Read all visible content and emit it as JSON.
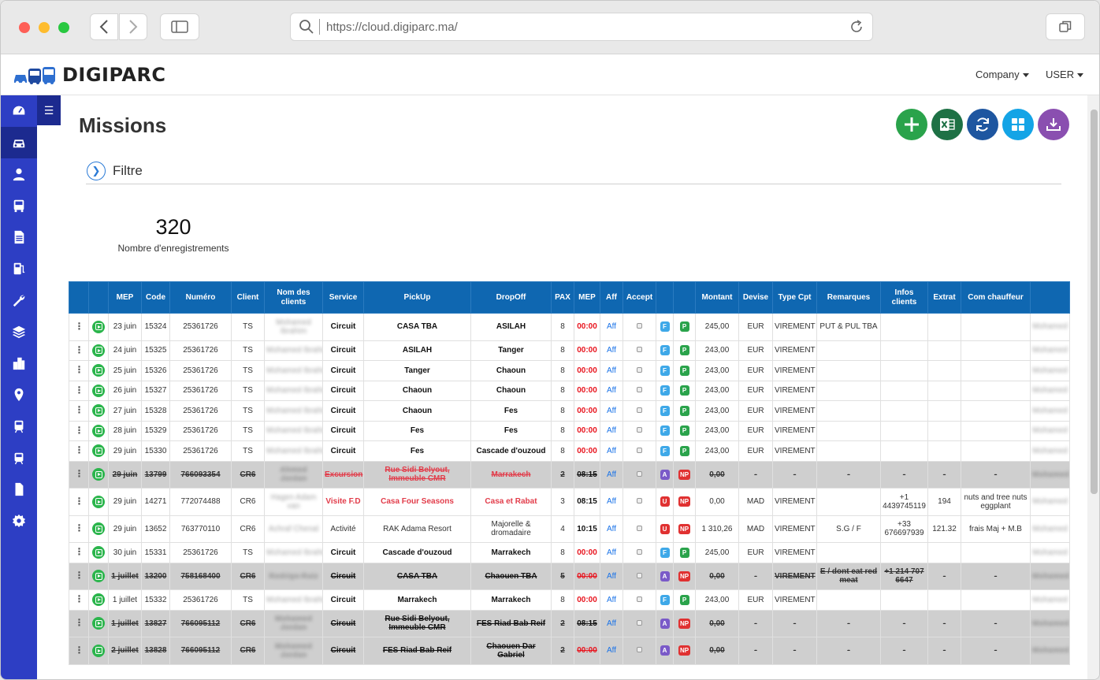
{
  "browser": {
    "url": "https://cloud.digiparc.ma/"
  },
  "header": {
    "logo": "DIGIPARC",
    "company_menu": "Company",
    "user_menu": "USER"
  },
  "nav": [
    "dashboard-icon",
    "car-icon",
    "user-icon",
    "bus-icon",
    "document-icon",
    "fuel-icon",
    "wrench-icon",
    "layers-icon",
    "building-icon",
    "location-pin-icon",
    "train-icon",
    "tram-icon",
    "file-icon",
    "gear-icon"
  ],
  "page": {
    "title": "Missions",
    "filter_label": "Filtre",
    "count": "320",
    "count_label": "Nombre d'enregistrements"
  },
  "actions": [
    {
      "name": "add-button",
      "color": "#2aa34b"
    },
    {
      "name": "excel-export-button",
      "color": "#1e7145"
    },
    {
      "name": "refresh-button",
      "color": "#1e56a0"
    },
    {
      "name": "grid-view-button",
      "color": "#14a4e6"
    },
    {
      "name": "download-button",
      "color": "#8a4fb0"
    }
  ],
  "table": {
    "columns": [
      "",
      "",
      "MEP",
      "Code",
      "Numéro",
      "Client",
      "Nom des clients",
      "Service",
      "PickUp",
      "DropOff",
      "PAX",
      "MEP",
      "Aff",
      "Accept",
      "",
      "",
      "Montant",
      "Devise",
      "Type Cpt",
      "Remarques",
      "Infos clients",
      "Extrat",
      "Com chauffeur",
      ""
    ],
    "rows": [
      {
        "date": "23 juin",
        "code": "15324",
        "num": "25361726",
        "client": "TS",
        "names": "Mohamed Ibrahim",
        "service": "Circuit",
        "pickup": "CASA TBA",
        "dropoff": "ASILAH",
        "pax": "8",
        "mep": "00:00",
        "aff": "Aff",
        "b1": "F",
        "b2": "P",
        "montant": "245,00",
        "devise": "EUR",
        "type": "VIREMENT",
        "rem": "PUT & PUL TBA",
        "infos": "",
        "extrat": "",
        "com": "",
        "last": "Mohamed",
        "style": "normal"
      },
      {
        "date": "24 juin",
        "code": "15325",
        "num": "25361726",
        "client": "TS",
        "names": "Mohamed Ibrahim",
        "service": "Circuit",
        "pickup": "ASILAH",
        "dropoff": "Tanger",
        "pax": "8",
        "mep": "00:00",
        "aff": "Aff",
        "b1": "F",
        "b2": "P",
        "montant": "243,00",
        "devise": "EUR",
        "type": "VIREMENT",
        "rem": "",
        "infos": "",
        "extrat": "",
        "com": "",
        "last": "Mohamed",
        "style": "normal"
      },
      {
        "date": "25 juin",
        "code": "15326",
        "num": "25361726",
        "client": "TS",
        "names": "Mohamed Ibrahim",
        "service": "Circuit",
        "pickup": "Tanger",
        "dropoff": "Chaoun",
        "pax": "8",
        "mep": "00:00",
        "aff": "Aff",
        "b1": "F",
        "b2": "P",
        "montant": "243,00",
        "devise": "EUR",
        "type": "VIREMENT",
        "rem": "",
        "infos": "",
        "extrat": "",
        "com": "",
        "last": "Mohamed",
        "style": "normal"
      },
      {
        "date": "26 juin",
        "code": "15327",
        "num": "25361726",
        "client": "TS",
        "names": "Mohamed Ibrahim",
        "service": "Circuit",
        "pickup": "Chaoun",
        "dropoff": "Chaoun",
        "pax": "8",
        "mep": "00:00",
        "aff": "Aff",
        "b1": "F",
        "b2": "P",
        "montant": "243,00",
        "devise": "EUR",
        "type": "VIREMENT",
        "rem": "",
        "infos": "",
        "extrat": "",
        "com": "",
        "last": "Mohamed",
        "style": "normal"
      },
      {
        "date": "27 juin",
        "code": "15328",
        "num": "25361726",
        "client": "TS",
        "names": "Mohamed Ibrahim",
        "service": "Circuit",
        "pickup": "Chaoun",
        "dropoff": "Fes",
        "pax": "8",
        "mep": "00:00",
        "aff": "Aff",
        "b1": "F",
        "b2": "P",
        "montant": "243,00",
        "devise": "EUR",
        "type": "VIREMENT",
        "rem": "",
        "infos": "",
        "extrat": "",
        "com": "",
        "last": "Mohamed",
        "style": "normal"
      },
      {
        "date": "28 juin",
        "code": "15329",
        "num": "25361726",
        "client": "TS",
        "names": "Mohamed Ibrahim",
        "service": "Circuit",
        "pickup": "Fes",
        "dropoff": "Fes",
        "pax": "8",
        "mep": "00:00",
        "aff": "Aff",
        "b1": "F",
        "b2": "P",
        "montant": "243,00",
        "devise": "EUR",
        "type": "VIREMENT",
        "rem": "",
        "infos": "",
        "extrat": "",
        "com": "",
        "last": "Mohamed",
        "style": "normal"
      },
      {
        "date": "29 juin",
        "code": "15330",
        "num": "25361726",
        "client": "TS",
        "names": "Mohamed Ibrahim",
        "service": "Circuit",
        "pickup": "Fes",
        "dropoff": "Cascade d'ouzoud",
        "pax": "8",
        "mep": "00:00",
        "aff": "Aff",
        "b1": "F",
        "b2": "P",
        "montant": "243,00",
        "devise": "EUR",
        "type": "VIREMENT",
        "rem": "",
        "infos": "",
        "extrat": "",
        "com": "",
        "last": "Mohamed",
        "style": "normal"
      },
      {
        "date": "29 juin",
        "code": "13799",
        "num": "766093354",
        "client": "CR6",
        "names": "Ahmed Jordan",
        "service": "Excursion",
        "pickup": "Rue Sidi Belyout, Immeuble CMR",
        "dropoff": "Marrakech",
        "pax": "2",
        "mep": "08:15",
        "aff": "Aff",
        "b1": "A",
        "b2": "NP",
        "montant": "0,00",
        "devise": "-",
        "type": "-",
        "rem": "-",
        "infos": "-",
        "extrat": "-",
        "com": "-",
        "last": "Mohamed",
        "style": "cancel-red"
      },
      {
        "date": "29 juin",
        "code": "14271",
        "num": "772074488",
        "client": "CR6",
        "names": "Hagen Adam van",
        "service": "Visite F.D",
        "pickup": "Casa Four Seasons",
        "dropoff": "Casa et Rabat",
        "pax": "3",
        "mep": "08:15",
        "aff": "Aff",
        "b1": "U",
        "b2": "NP",
        "montant": "0,00",
        "devise": "MAD",
        "type": "VIREMENT",
        "rem": "",
        "infos": "+1 4439745119",
        "extrat": "194",
        "com": "nuts and tree nuts eggplant",
        "last": "Mohamed",
        "style": "visit"
      },
      {
        "date": "29 juin",
        "code": "13652",
        "num": "763770110",
        "client": "CR6",
        "names": "Achraf Chenal",
        "service": "Activité",
        "pickup": "RAK Adama Resort",
        "dropoff": "Majorelle & dromadaire",
        "pax": "4",
        "mep": "10:15",
        "aff": "Aff",
        "b1": "U",
        "b2": "NP",
        "montant": "1 310,26",
        "devise": "MAD",
        "type": "VIREMENT",
        "rem": "S.G / F",
        "infos": "+33 676697939",
        "extrat": "121.32",
        "com": "frais Maj + M.B",
        "last": "Mohamed",
        "style": "activity"
      },
      {
        "date": "30 juin",
        "code": "15331",
        "num": "25361726",
        "client": "TS",
        "names": "Mohamed Ibrahim",
        "service": "Circuit",
        "pickup": "Cascade d'ouzoud",
        "dropoff": "Marrakech",
        "pax": "8",
        "mep": "00:00",
        "aff": "Aff",
        "b1": "F",
        "b2": "P",
        "montant": "245,00",
        "devise": "EUR",
        "type": "VIREMENT",
        "rem": "",
        "infos": "",
        "extrat": "",
        "com": "",
        "last": "Mohamed",
        "style": "normal"
      },
      {
        "date": "1 juillet",
        "code": "13200",
        "num": "758168400",
        "client": "CR6",
        "names": "Rodrigo Ruiz",
        "service": "Circuit",
        "pickup": "CASA TBA",
        "dropoff": "Chaouen TBA",
        "pax": "5",
        "mep": "00:00",
        "aff": "Aff",
        "b1": "A",
        "b2": "NP",
        "montant": "0,00",
        "devise": "-",
        "type": "VIREMENT",
        "rem": "E / dont eat red meat",
        "infos": "+1 214 707 6647",
        "extrat": "-",
        "com": "-",
        "last": "Mohamed",
        "style": "cancel"
      },
      {
        "date": "1 juillet",
        "code": "15332",
        "num": "25361726",
        "client": "TS",
        "names": "Mohamed Ibrahim",
        "service": "Circuit",
        "pickup": "Marrakech",
        "dropoff": "Marrakech",
        "pax": "8",
        "mep": "00:00",
        "aff": "Aff",
        "b1": "F",
        "b2": "P",
        "montant": "243,00",
        "devise": "EUR",
        "type": "VIREMENT",
        "rem": "",
        "infos": "",
        "extrat": "",
        "com": "",
        "last": "Mohamed",
        "style": "normal"
      },
      {
        "date": "1 juillet",
        "code": "13827",
        "num": "766095112",
        "client": "CR6",
        "names": "Mohamed Jordan",
        "service": "Circuit",
        "pickup": "Rue Sidi Belyout, Immeuble CMR",
        "dropoff": "FES Riad Bab Reif",
        "pax": "2",
        "mep": "08:15",
        "aff": "Aff",
        "b1": "A",
        "b2": "NP",
        "montant": "0,00",
        "devise": "-",
        "type": "-",
        "rem": "-",
        "infos": "-",
        "extrat": "-",
        "com": "-",
        "last": "Mohamed",
        "style": "cancel"
      },
      {
        "date": "2 juillet",
        "code": "13828",
        "num": "766095112",
        "client": "CR6",
        "names": "Mohamed Jordan",
        "service": "Circuit",
        "pickup": "FES Riad Bab Reif",
        "dropoff": "Chaouen Dar Gabriel",
        "pax": "2",
        "mep": "00:00",
        "aff": "Aff",
        "b1": "A",
        "b2": "NP",
        "montant": "0,00",
        "devise": "-",
        "type": "-",
        "rem": "-",
        "infos": "-",
        "extrat": "-",
        "com": "-",
        "last": "Mohamed",
        "style": "cancel"
      }
    ]
  }
}
